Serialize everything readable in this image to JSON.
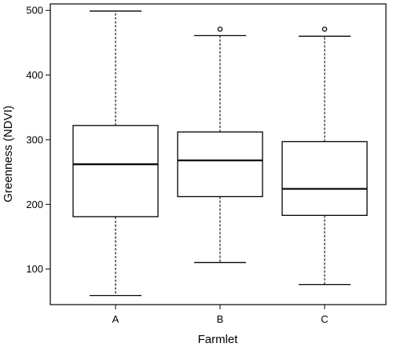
{
  "chart_data": {
    "type": "box",
    "xlabel": "Farmlet",
    "ylabel": "Greenness (NDVI)",
    "ylim": [
      45,
      510
    ],
    "yticks": [
      100,
      200,
      300,
      400,
      500
    ],
    "categories": [
      "A",
      "B",
      "C"
    ],
    "boxes": [
      {
        "category": "A",
        "whisker_low": 59,
        "q1": 181,
        "median": 262,
        "q3": 322,
        "whisker_high": 499,
        "outliers": []
      },
      {
        "category": "B",
        "whisker_low": 110,
        "q1": 212,
        "median": 268,
        "q3": 312,
        "whisker_high": 461,
        "outliers": [
          471
        ]
      },
      {
        "category": "C",
        "whisker_low": 76,
        "q1": 183,
        "median": 224,
        "q3": 297,
        "whisker_high": 460,
        "outliers": [
          471
        ]
      }
    ],
    "grid": false,
    "legend": "none"
  }
}
